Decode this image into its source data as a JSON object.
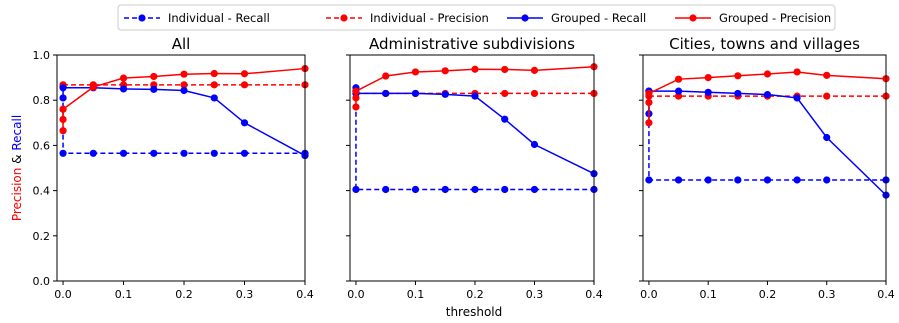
{
  "chart_data": {
    "type": "line",
    "xlabel": "threshold",
    "ylabel_parts": [
      {
        "text": "Precision",
        "color": "#ff0000"
      },
      {
        "text": " & ",
        "color": "#000000"
      },
      {
        "text": "Recall",
        "color": "#0000ff"
      }
    ],
    "xlim": [
      -0.01,
      0.4
    ],
    "ylim": [
      0.0,
      1.0
    ],
    "xticks": [
      0.0,
      0.1,
      0.2,
      0.3,
      0.4
    ],
    "xtick_labels": [
      "0.0",
      "0.1",
      "0.2",
      "0.3",
      "0.4"
    ],
    "yticks": [
      0.0,
      0.2,
      0.4,
      0.6,
      0.8,
      1.0
    ],
    "ytick_labels": [
      "0.0",
      "0.2",
      "0.4",
      "0.6",
      "0.8",
      "1.0"
    ],
    "legend": {
      "placement": "top-center",
      "entries": [
        {
          "label": "Individual - Recall",
          "color": "#0000ff",
          "dashed": true
        },
        {
          "label": "Individual - Precision",
          "color": "#ff0000",
          "dashed": true
        },
        {
          "label": "Grouped - Recall",
          "color": "#0000ff",
          "dashed": false
        },
        {
          "label": "Grouped - Precision",
          "color": "#ff0000",
          "dashed": false
        }
      ]
    },
    "panels": [
      {
        "title": "All",
        "series": [
          {
            "name": "Individual - Recall",
            "color": "#0000ff",
            "dashed": true,
            "x": [
              0.0,
              0.0,
              0.05,
              0.1,
              0.15,
              0.2,
              0.25,
              0.3,
              0.4
            ],
            "y": [
              0.86,
              0.565,
              0.565,
              0.565,
              0.565,
              0.565,
              0.565,
              0.565,
              0.565
            ]
          },
          {
            "name": "Individual - Precision",
            "color": "#ff0000",
            "dashed": true,
            "x": [
              0.0,
              0.05,
              0.1,
              0.15,
              0.2,
              0.25,
              0.3,
              0.4
            ],
            "y": [
              0.868,
              0.868,
              0.868,
              0.868,
              0.868,
              0.868,
              0.868,
              0.868
            ]
          },
          {
            "name": "Grouped - Recall",
            "color": "#0000ff",
            "dashed": false,
            "x": [
              0.0,
              0.0,
              0.05,
              0.1,
              0.15,
              0.2,
              0.25,
              0.3,
              0.4
            ],
            "y": [
              0.81,
              0.855,
              0.855,
              0.85,
              0.848,
              0.843,
              0.81,
              0.7,
              0.555
            ]
          },
          {
            "name": "Grouped - Precision",
            "color": "#ff0000",
            "dashed": false,
            "x": [
              0.0,
              0.0,
              0.0,
              0.0,
              0.05,
              0.1,
              0.15,
              0.2,
              0.25,
              0.3,
              0.4
            ],
            "y": [
              0.665,
              0.715,
              0.76,
              0.76,
              0.858,
              0.898,
              0.905,
              0.915,
              0.918,
              0.917,
              0.94
            ]
          }
        ]
      },
      {
        "title": "Administrative subdivisions",
        "series": [
          {
            "name": "Individual - Recall",
            "color": "#0000ff",
            "dashed": true,
            "x": [
              0.0,
              0.0,
              0.05,
              0.1,
              0.15,
              0.2,
              0.25,
              0.3,
              0.4
            ],
            "y": [
              0.855,
              0.405,
              0.405,
              0.405,
              0.405,
              0.405,
              0.405,
              0.405,
              0.405
            ]
          },
          {
            "name": "Individual - Precision",
            "color": "#ff0000",
            "dashed": true,
            "x": [
              0.0,
              0.05,
              0.1,
              0.15,
              0.2,
              0.25,
              0.3,
              0.4
            ],
            "y": [
              0.83,
              0.83,
              0.83,
              0.83,
              0.83,
              0.83,
              0.83,
              0.83
            ]
          },
          {
            "name": "Grouped - Recall",
            "color": "#0000ff",
            "dashed": false,
            "x": [
              0.0,
              0.0,
              0.05,
              0.1,
              0.15,
              0.2,
              0.25,
              0.3,
              0.4
            ],
            "y": [
              0.84,
              0.83,
              0.83,
              0.83,
              0.826,
              0.818,
              0.716,
              0.604,
              0.475
            ]
          },
          {
            "name": "Grouped - Precision",
            "color": "#ff0000",
            "dashed": false,
            "x": [
              0.0,
              0.0,
              0.0,
              0.05,
              0.1,
              0.15,
              0.2,
              0.25,
              0.3,
              0.4
            ],
            "y": [
              0.77,
              0.81,
              0.84,
              0.907,
              0.925,
              0.93,
              0.937,
              0.936,
              0.932,
              0.948
            ]
          }
        ]
      },
      {
        "title": "Cities, towns and villages",
        "series": [
          {
            "name": "Individual - Recall",
            "color": "#0000ff",
            "dashed": true,
            "x": [
              0.0,
              0.0,
              0.05,
              0.1,
              0.15,
              0.2,
              0.25,
              0.3,
              0.4
            ],
            "y": [
              0.84,
              0.447,
              0.447,
              0.447,
              0.447,
              0.447,
              0.447,
              0.447,
              0.447
            ]
          },
          {
            "name": "Individual - Precision",
            "color": "#ff0000",
            "dashed": true,
            "x": [
              0.0,
              0.05,
              0.1,
              0.15,
              0.2,
              0.25,
              0.3,
              0.4
            ],
            "y": [
              0.818,
              0.818,
              0.818,
              0.818,
              0.818,
              0.818,
              0.818,
              0.818
            ]
          },
          {
            "name": "Grouped - Recall",
            "color": "#0000ff",
            "dashed": false,
            "x": [
              0.0,
              0.0,
              0.05,
              0.1,
              0.15,
              0.2,
              0.25,
              0.3,
              0.4
            ],
            "y": [
              0.74,
              0.84,
              0.84,
              0.835,
              0.83,
              0.825,
              0.81,
              0.635,
              0.38
            ]
          },
          {
            "name": "Grouped - Precision",
            "color": "#ff0000",
            "dashed": false,
            "x": [
              0.0,
              0.0,
              0.0,
              0.05,
              0.1,
              0.15,
              0.2,
              0.25,
              0.3,
              0.4
            ],
            "y": [
              0.7,
              0.79,
              0.83,
              0.893,
              0.9,
              0.908,
              0.916,
              0.925,
              0.91,
              0.895
            ]
          }
        ]
      }
    ]
  }
}
